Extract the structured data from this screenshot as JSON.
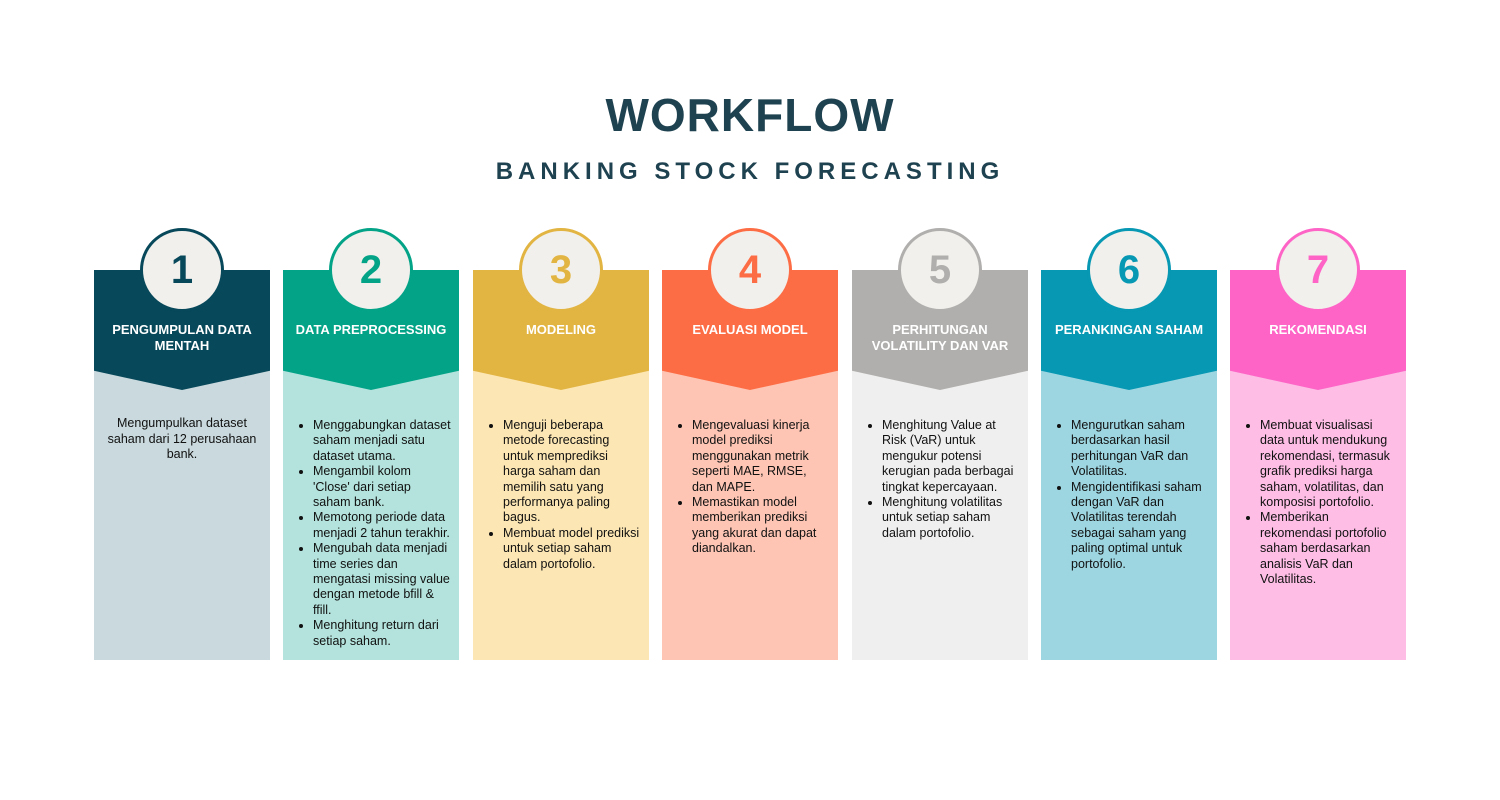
{
  "header": {
    "title": "WORKFLOW",
    "subtitle": "BANKING STOCK FORECASTING"
  },
  "steps": [
    {
      "number": "1",
      "title": "PENGUMPULAN DATA MENTAH",
      "color": "#07485a",
      "body_color": "#c9d9dd",
      "text": "Mengumpulkan dataset saham dari 12 perusahaan bank.",
      "bullets": []
    },
    {
      "number": "2",
      "title": "DATA PREPROCESSING",
      "color": "#03a387",
      "body_color": "#b3e3dc",
      "bullets": [
        "Menggabungkan dataset saham menjadi satu dataset utama.",
        "Mengambil kolom 'Close' dari setiap saham bank.",
        "Memotong periode data menjadi 2 tahun terakhir.",
        "Mengubah data menjadi time series dan mengatasi missing value dengan metode bfill & ffill.",
        "Menghitung return dari setiap saham."
      ]
    },
    {
      "number": "3",
      "title": "MODELING",
      "color": "#e2b442",
      "body_color": "#fce6b3",
      "bullets": [
        "Menguji beberapa metode forecasting untuk memprediksi harga saham dan memilih satu yang performanya paling bagus.",
        "Membuat model prediksi untuk setiap saham dalam portofolio."
      ]
    },
    {
      "number": "4",
      "title": "EVALUASI MODEL",
      "color": "#fd6d45",
      "body_color": "#fec5b4",
      "bullets": [
        "Mengevaluasi kinerja model prediksi menggunakan metrik seperti MAE, RMSE, dan MAPE.",
        "Memastikan model memberikan prediksi yang akurat dan dapat diandalkan."
      ]
    },
    {
      "number": "5",
      "title": "PERHITUNGAN VOLATILITY DAN VAR",
      "color": "#b1afad",
      "body_color": "#efefef",
      "bullets": [
        "Menghitung Value at Risk (VaR) untuk mengukur potensi kerugian pada berbagai tingkat kepercayaan.",
        "Menghitung volatilitas untuk setiap saham dalam portofolio."
      ]
    },
    {
      "number": "6",
      "title": "PERANKINGAN SAHAM",
      "color": "#0798b3",
      "body_color": "#9dd6e1",
      "bullets": [
        "Mengurutkan saham berdasarkan hasil perhitungan VaR dan Volatilitas.",
        "Mengidentifikasi saham dengan VaR dan Volatilitas terendah sebagai saham yang paling optimal untuk portofolio."
      ]
    },
    {
      "number": "7",
      "title": "REKOMENDASI",
      "color": "#fd64c6",
      "body_color": "#fdbde5",
      "bullets": [
        "Membuat visualisasi data untuk mendukung rekomendasi, termasuk grafik prediksi harga saham, volatilitas, dan komposisi portofolio.",
        "Memberikan rekomendasi portofolio saham berdasarkan analisis VaR dan Volatilitas."
      ]
    }
  ]
}
